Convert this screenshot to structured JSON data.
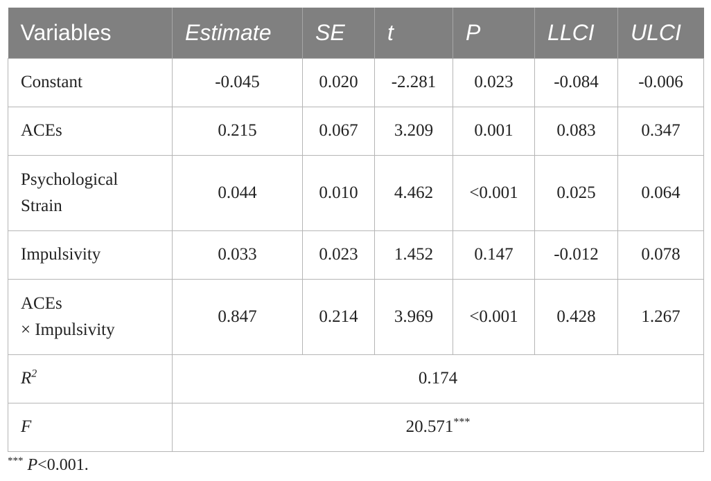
{
  "table": {
    "headers": [
      "Variables",
      "Estimate",
      "SE",
      "t",
      "P",
      "LLCI",
      "ULCI"
    ],
    "rows": [
      {
        "variable_line1": "Constant",
        "variable_line2": "",
        "values": [
          "-0.045",
          "0.020",
          "-2.281",
          "0.023",
          "-0.084",
          "-0.006"
        ]
      },
      {
        "variable_line1": "ACEs",
        "variable_line2": "",
        "values": [
          "0.215",
          "0.067",
          "3.209",
          "0.001",
          "0.083",
          "0.347"
        ]
      },
      {
        "variable_line1": "Psychological",
        "variable_line2": "Strain",
        "values": [
          "0.044",
          "0.010",
          "4.462",
          "<0.001",
          "0.025",
          "0.064"
        ]
      },
      {
        "variable_line1": "Impulsivity",
        "variable_line2": "",
        "values": [
          "0.033",
          "0.023",
          "1.452",
          "0.147",
          "-0.012",
          "0.078"
        ]
      },
      {
        "variable_line1": "ACEs",
        "variable_line2": "× Impulsivity",
        "values": [
          "0.847",
          "0.214",
          "3.969",
          "<0.001",
          "0.428",
          "1.267"
        ]
      }
    ],
    "summary": {
      "r2_label": "R",
      "r2_sup": "2",
      "r2_value": "0.174",
      "f_label": "F",
      "f_value": "20.571",
      "f_stars": "***"
    }
  },
  "footnote": {
    "stars": "***",
    "p": "P",
    "text": "<0.001."
  }
}
